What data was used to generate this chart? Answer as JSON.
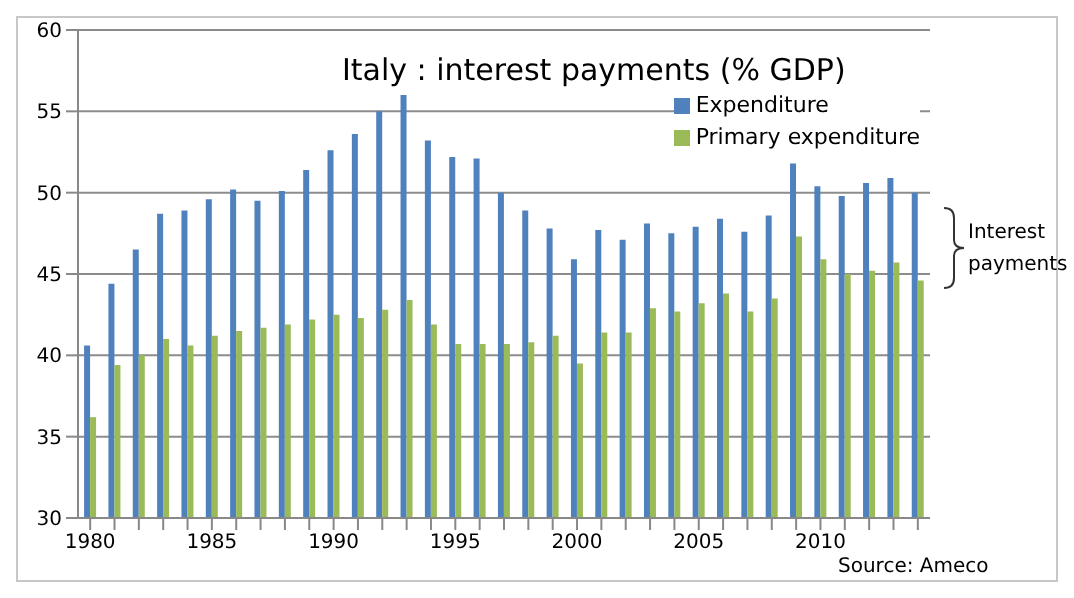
{
  "chart_data": {
    "type": "bar",
    "title": "Italy : interest payments (% GDP)",
    "categories": [
      "1980",
      null,
      null,
      null,
      null,
      "1985",
      null,
      null,
      null,
      null,
      "1990",
      null,
      null,
      null,
      null,
      "1995",
      null,
      null,
      null,
      null,
      "2000",
      null,
      null,
      null,
      null,
      "2005",
      null,
      null,
      null,
      null,
      "2010",
      null,
      null,
      null,
      null
    ],
    "series": [
      {
        "name": "Expenditure",
        "color": "#4f81bd",
        "values": [
          40.6,
          44.4,
          46.5,
          48.7,
          48.9,
          49.6,
          50.2,
          49.5,
          50.1,
          51.4,
          52.6,
          53.6,
          55.0,
          56.0,
          53.2,
          52.2,
          52.1,
          50.0,
          48.9,
          47.8,
          45.9,
          47.7,
          47.1,
          48.1,
          47.5,
          47.9,
          48.4,
          47.6,
          48.6,
          51.8,
          50.4,
          49.8,
          50.6,
          50.9,
          50.0
        ]
      },
      {
        "name": "Primary expenditure",
        "color": "#9bbb59",
        "values": [
          36.2,
          39.4,
          40.0,
          41.0,
          40.6,
          41.2,
          41.5,
          41.7,
          41.9,
          42.2,
          42.5,
          42.3,
          42.8,
          43.4,
          41.9,
          40.7,
          40.7,
          40.7,
          40.8,
          41.2,
          39.5,
          41.4,
          41.4,
          42.9,
          42.7,
          43.2,
          43.8,
          42.7,
          43.5,
          47.3,
          45.9,
          45.0,
          45.2,
          45.7,
          44.6
        ]
      }
    ],
    "ylim": [
      30,
      60
    ],
    "yticks": [
      30,
      35,
      40,
      45,
      50,
      55,
      60
    ],
    "grid": "y",
    "legend": "top right",
    "annotations": [
      "Interest payments",
      "Source: Ameco"
    ]
  }
}
